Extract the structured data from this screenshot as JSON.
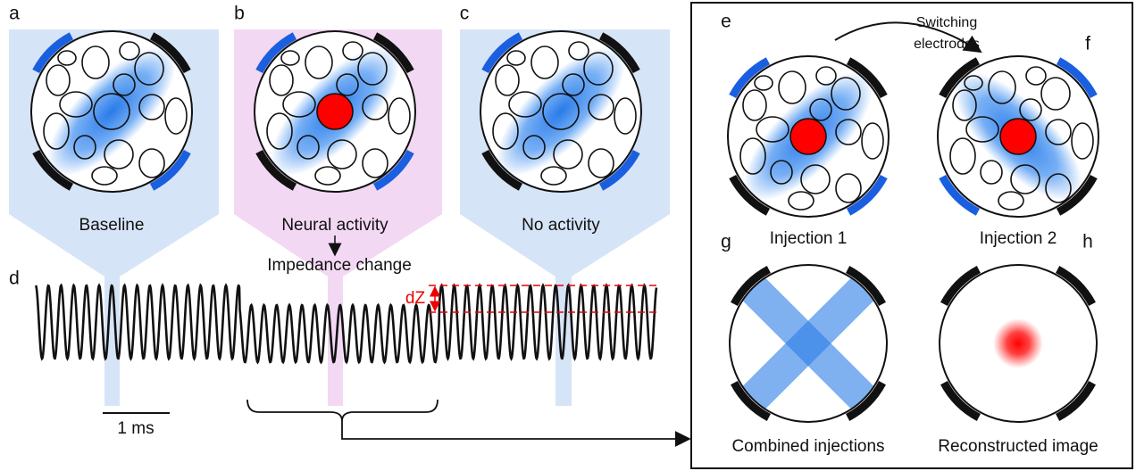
{
  "panels": {
    "a": {
      "letter": "a",
      "label": "Baseline"
    },
    "b": {
      "letter": "b",
      "label": "Neural activity",
      "note": "Impedance change"
    },
    "c": {
      "letter": "c",
      "label": "No activity"
    },
    "d": {
      "letter": "d",
      "dz": "dZ",
      "scale": "1 ms"
    },
    "e": {
      "letter": "e",
      "label": "Injection 1"
    },
    "f": {
      "letter": "f",
      "label": "Injection 2"
    },
    "g": {
      "letter": "g",
      "label": "Combined injections"
    },
    "h": {
      "letter": "h",
      "label": "Reconstructed image"
    }
  },
  "switch_label": [
    "Switching",
    "electrodes"
  ]
}
